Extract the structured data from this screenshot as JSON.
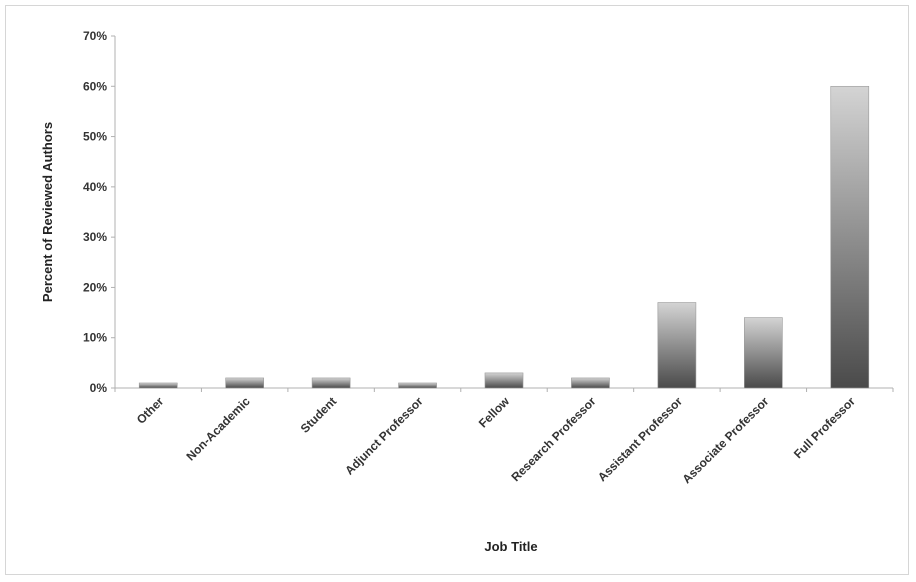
{
  "chart_data": {
    "type": "bar",
    "title": "",
    "xlabel": "Job Title",
    "ylabel": "Percent of Reviewed Authors",
    "ylim": [
      0,
      70
    ],
    "yticks": [
      0,
      10,
      20,
      30,
      40,
      50,
      60,
      70
    ],
    "ytick_labels": [
      "0%",
      "10%",
      "20%",
      "30%",
      "40%",
      "50%",
      "60%",
      "70%"
    ],
    "categories": [
      "Other",
      "Non-Academic",
      "Student",
      "Adjunct Professor",
      "Fellow",
      "Research Professor",
      "Assistant Professor",
      "Associate Professor",
      "Full Professor"
    ],
    "values": [
      1,
      2,
      2,
      1,
      3,
      2,
      17,
      14,
      60
    ],
    "grid": false,
    "legend": "none",
    "bar_color_light": "#cfcfcf",
    "bar_color_dark": "#4a4a4a"
  }
}
